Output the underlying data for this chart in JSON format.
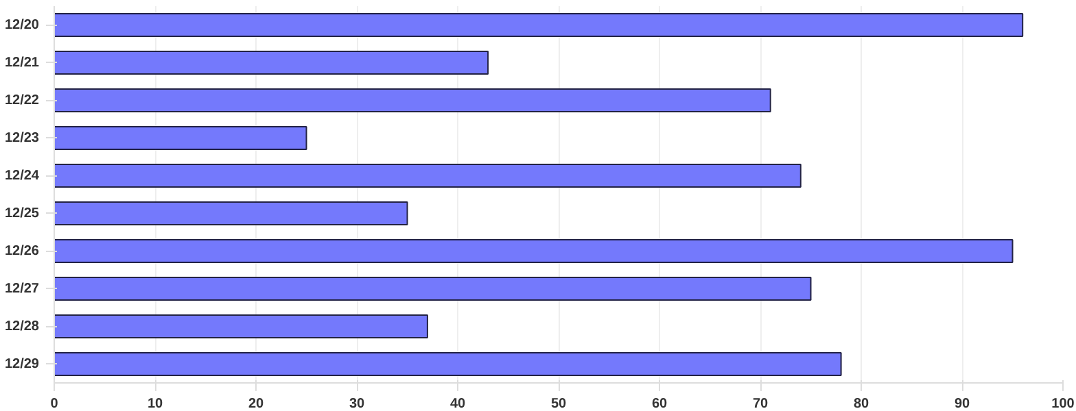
{
  "chart_data": {
    "type": "bar",
    "orientation": "horizontal",
    "categories": [
      "12/20",
      "12/21",
      "12/22",
      "12/23",
      "12/24",
      "12/25",
      "12/26",
      "12/27",
      "12/28",
      "12/29"
    ],
    "values": [
      96,
      43,
      71,
      25,
      74,
      35,
      95,
      75,
      37,
      78
    ],
    "color": "#7479fc",
    "xlim": [
      0,
      100
    ],
    "xticks": [
      0,
      10,
      20,
      30,
      40,
      50,
      60,
      70,
      80,
      90,
      100
    ],
    "grid": "x"
  }
}
